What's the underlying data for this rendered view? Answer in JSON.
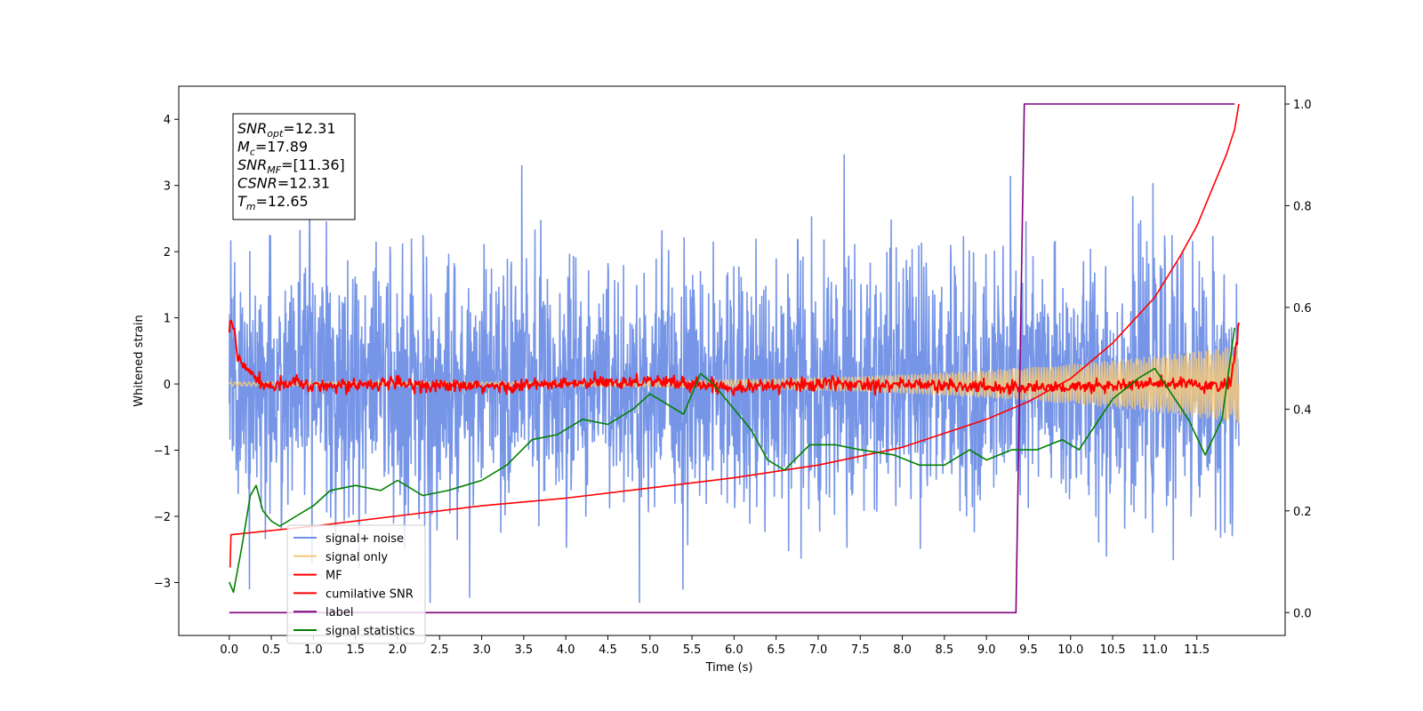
{
  "chart_data": {
    "type": "line",
    "xlabel": "Time (s)",
    "ylabel": "Whitened strain",
    "xlim": [
      -0.6,
      12.55
    ],
    "ylim": [
      -3.8,
      4.5
    ],
    "y2lim": [
      -0.045,
      1.035
    ],
    "x_ticks": [
      "0.0",
      "0.5",
      "1.0",
      "1.5",
      "2.0",
      "2.5",
      "3.0",
      "3.5",
      "4.0",
      "4.5",
      "5.0",
      "5.5",
      "6.0",
      "6.5",
      "7.0",
      "7.5",
      "8.0",
      "8.5",
      "9.0",
      "9.5",
      "10.0",
      "10.5",
      "11.0",
      "11.5"
    ],
    "y_ticks": [
      "4",
      "3",
      "2",
      "1",
      "0",
      "−1",
      "−2",
      "−3"
    ],
    "y2_ticks": [
      "1.0",
      "0.8",
      "0.6",
      "0.4",
      "0.2",
      "0.0"
    ],
    "info_box": [
      {
        "base": "SNR",
        "sub": "opt",
        "value": "=12.31"
      },
      {
        "base": "M",
        "sub": "c",
        "value": "=17.89"
      },
      {
        "base": "SNR",
        "sub": "MF",
        "value": "=[11.36]"
      },
      {
        "base": "CSNR",
        "sub": "",
        "value": "=12.31"
      },
      {
        "base": "T",
        "sub": "m",
        "value": "=12.65"
      }
    ],
    "legend": {
      "placement": "lower-left",
      "entries": [
        {
          "label": "signal+ noise",
          "color": "#6f8fe6"
        },
        {
          "label": "signal only",
          "color": "#f5c97a"
        },
        {
          "label": "MF",
          "color": "#ff0000"
        },
        {
          "label": "cumilative SNR",
          "color": "#ff0000"
        },
        {
          "label": "label",
          "color": "#800080"
        },
        {
          "label": "signal statistics",
          "color": "#008000"
        }
      ]
    },
    "series": [
      {
        "name": "signal+ noise",
        "axis": "left",
        "color": "#6f8fe6",
        "x_range": [
          0.0,
          12.0
        ],
        "amplitude_range": [
          -3.3,
          4.2
        ]
      },
      {
        "name": "signal only",
        "axis": "left",
        "color": "#f5c97a",
        "x_range": [
          0.0,
          12.0
        ],
        "amplitude_end": 0.55
      },
      {
        "name": "MF",
        "axis": "left",
        "color": "#ff0000",
        "x": [
          0.0,
          0.03,
          0.06,
          0.1,
          0.15,
          0.2,
          0.3,
          0.4,
          0.5,
          0.6,
          0.8,
          1.0,
          1.5,
          2.0,
          3.0,
          4.0,
          5.0,
          6.0,
          7.0,
          8.0,
          9.0,
          10.0,
          11.0,
          11.5,
          11.8,
          11.9,
          11.95,
          12.0
        ],
        "y": [
          0.8,
          0.95,
          0.75,
          0.4,
          0.3,
          0.25,
          0.1,
          0.0,
          -0.05,
          0.0,
          0.05,
          -0.05,
          0.0,
          0.0,
          -0.05,
          0.0,
          0.05,
          -0.05,
          0.0,
          0.0,
          -0.05,
          -0.05,
          0.0,
          0.0,
          -0.05,
          0.0,
          0.4,
          0.95
        ]
      },
      {
        "name": "cumilative SNR",
        "axis": "right",
        "color": "#ff0000",
        "x": [
          0.0,
          0.01,
          0.02,
          1.0,
          2.0,
          3.0,
          4.0,
          5.0,
          6.0,
          7.0,
          8.0,
          9.0,
          9.5,
          10.0,
          10.5,
          11.0,
          11.3,
          11.5,
          11.7,
          11.85,
          11.95,
          12.0
        ],
        "y": [
          0.09,
          0.09,
          0.153,
          0.17,
          0.19,
          0.21,
          0.225,
          0.245,
          0.265,
          0.29,
          0.325,
          0.38,
          0.415,
          0.46,
          0.53,
          0.62,
          0.7,
          0.76,
          0.84,
          0.9,
          0.95,
          1.0
        ]
      },
      {
        "name": "label",
        "axis": "right",
        "color": "#800080",
        "x": [
          0.0,
          9.35,
          9.45,
          11.95
        ],
        "y": [
          0.0,
          0.0,
          1.0,
          1.0
        ]
      },
      {
        "name": "signal statistics",
        "axis": "right",
        "color": "#008000",
        "x": [
          0.0,
          0.05,
          0.15,
          0.25,
          0.32,
          0.4,
          0.5,
          0.6,
          0.7,
          0.8,
          1.0,
          1.2,
          1.5,
          1.8,
          2.0,
          2.3,
          2.6,
          3.0,
          3.3,
          3.6,
          3.9,
          4.2,
          4.5,
          4.8,
          5.0,
          5.2,
          5.4,
          5.6,
          5.75,
          6.0,
          6.2,
          6.4,
          6.6,
          6.9,
          7.2,
          7.5,
          7.9,
          8.2,
          8.5,
          8.8,
          9.0,
          9.3,
          9.6,
          9.9,
          10.1,
          10.3,
          10.5,
          10.8,
          11.0,
          11.2,
          11.4,
          11.6,
          11.8,
          11.95
        ],
        "y": [
          0.06,
          0.04,
          0.13,
          0.23,
          0.25,
          0.2,
          0.18,
          0.17,
          0.18,
          0.19,
          0.21,
          0.24,
          0.25,
          0.24,
          0.26,
          0.23,
          0.24,
          0.26,
          0.29,
          0.34,
          0.35,
          0.38,
          0.37,
          0.4,
          0.43,
          0.41,
          0.39,
          0.47,
          0.45,
          0.4,
          0.36,
          0.3,
          0.28,
          0.33,
          0.33,
          0.32,
          0.31,
          0.29,
          0.29,
          0.32,
          0.3,
          0.32,
          0.32,
          0.34,
          0.32,
          0.37,
          0.42,
          0.46,
          0.48,
          0.43,
          0.38,
          0.31,
          0.38,
          0.56
        ]
      }
    ]
  }
}
